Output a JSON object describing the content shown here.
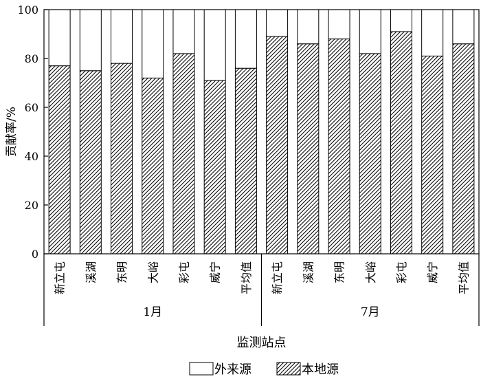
{
  "chart_data": {
    "type": "bar",
    "stacked": true,
    "ylabel": "贡献率/%",
    "xlabel": "监测站点",
    "ylim": [
      0,
      100
    ],
    "yticks": [
      0,
      20,
      40,
      60,
      80,
      100
    ],
    "categories": [
      "新立屯",
      "溪湖",
      "东明",
      "大峪",
      "彩屯",
      "威宁",
      "平均值",
      "新立屯",
      "溪湖",
      "东明",
      "大峪",
      "彩屯",
      "威宁",
      "平均值"
    ],
    "groups": [
      {
        "label": "1月",
        "start": 0,
        "end": 6
      },
      {
        "label": "7月",
        "start": 7,
        "end": 13
      }
    ],
    "series": [
      {
        "name": "本地源",
        "values": [
          77,
          75,
          78,
          72,
          82,
          71,
          76,
          89,
          86,
          88,
          82,
          91,
          81,
          86
        ]
      },
      {
        "name": "外来源",
        "values": [
          23,
          25,
          22,
          28,
          18,
          29,
          24,
          11,
          14,
          12,
          18,
          9,
          19,
          14
        ]
      }
    ],
    "legend": {
      "position": "bottom",
      "items": [
        {
          "label": "外来源",
          "pattern": "blank"
        },
        {
          "label": "本地源",
          "pattern": "hatched"
        }
      ]
    },
    "grid": false
  }
}
